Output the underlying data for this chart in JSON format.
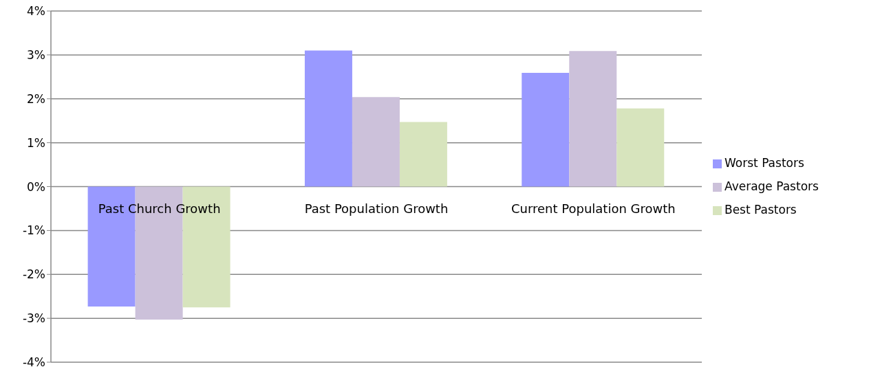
{
  "chart_data": {
    "type": "bar",
    "categories": [
      "Past Church Growth",
      "Past Population Growth",
      "Current Population Growth"
    ],
    "series": [
      {
        "name": "Worst Pastors",
        "color": "#9999ff",
        "values": [
          -2.73,
          3.1,
          2.59
        ]
      },
      {
        "name": "Average Pastors",
        "color": "#ccc1da",
        "values": [
          -3.03,
          2.04,
          3.09
        ]
      },
      {
        "name": "Best Pastors",
        "color": "#d7e4bd",
        "values": [
          -2.75,
          1.47,
          1.78
        ]
      }
    ],
    "ylim": [
      -4,
      4
    ],
    "yticks": [
      {
        "value": -4,
        "label": "-4%"
      },
      {
        "value": -3,
        "label": "-3%"
      },
      {
        "value": -2,
        "label": "-2%"
      },
      {
        "value": -1,
        "label": "-1%"
      },
      {
        "value": 0,
        "label": "0%"
      },
      {
        "value": 1,
        "label": "1%"
      },
      {
        "value": 2,
        "label": "2%"
      },
      {
        "value": 3,
        "label": "3%"
      },
      {
        "value": 4,
        "label": "4%"
      }
    ],
    "grid": "y",
    "legend": "right"
  }
}
